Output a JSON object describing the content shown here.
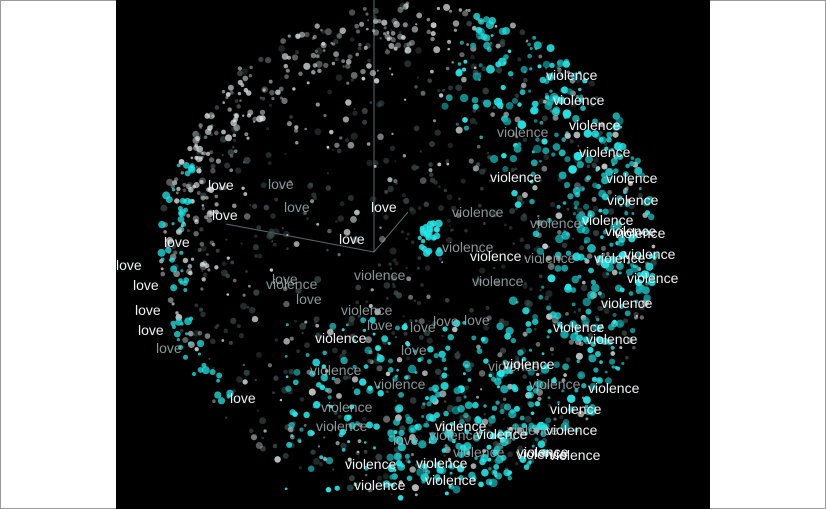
{
  "projector": {
    "background": "#000000",
    "colors": {
      "highlight": "#22e6e6",
      "highlight_dim": "#13a7a9",
      "neutral_point": "#dfe7e7",
      "dim_point": "#3f5252",
      "label_bright": "#eef3f3",
      "label_dim": "#9fb1b1",
      "axis": "#7f9999"
    },
    "labels": [
      {
        "text": "violence",
        "tone": "bright"
      },
      {
        "text": "violence",
        "tone": "bright"
      },
      {
        "text": "violence",
        "tone": "bright"
      },
      {
        "text": "violence",
        "tone": "dim"
      },
      {
        "text": "violence",
        "tone": "bright"
      },
      {
        "text": "violence",
        "tone": "bright"
      },
      {
        "text": "violence",
        "tone": "bright"
      },
      {
        "text": "violence",
        "tone": "bright"
      },
      {
        "text": "violence",
        "tone": "dim"
      },
      {
        "text": "violence",
        "tone": "dim"
      },
      {
        "text": "violence",
        "tone": "bright"
      },
      {
        "text": "violence",
        "tone": "dim"
      },
      {
        "text": "violence",
        "tone": "bright"
      },
      {
        "text": "violence",
        "tone": "bright"
      },
      {
        "text": "violence",
        "tone": "dim"
      },
      {
        "text": "violence",
        "tone": "dim"
      },
      {
        "text": "violence",
        "tone": "bright"
      },
      {
        "text": "violence",
        "tone": "dim"
      },
      {
        "text": "violence",
        "tone": "bright"
      },
      {
        "text": "violence",
        "tone": "bright"
      },
      {
        "text": "violence",
        "tone": "dim"
      },
      {
        "text": "violence",
        "tone": "dim"
      },
      {
        "text": "violence",
        "tone": "bright"
      },
      {
        "text": "violence",
        "tone": "dim"
      },
      {
        "text": "violence",
        "tone": "dim"
      },
      {
        "text": "violence",
        "tone": "bright"
      },
      {
        "text": "violence",
        "tone": "dim"
      },
      {
        "text": "violence",
        "tone": "dim"
      },
      {
        "text": "violence",
        "tone": "bright"
      },
      {
        "text": "violence",
        "tone": "dim"
      },
      {
        "text": "violence",
        "tone": "bright"
      },
      {
        "text": "violence",
        "tone": "bright"
      },
      {
        "text": "violence",
        "tone": "dim"
      },
      {
        "text": "violence",
        "tone": "dim"
      },
      {
        "text": "violence",
        "tone": "bright"
      },
      {
        "text": "violence",
        "tone": "dim"
      },
      {
        "text": "violence",
        "tone": "bright"
      },
      {
        "text": "violence",
        "tone": "bright"
      },
      {
        "text": "violence",
        "tone": "bright"
      },
      {
        "text": "violence",
        "tone": "bright"
      },
      {
        "text": "violence",
        "tone": "bright"
      },
      {
        "text": "violence",
        "tone": "bright"
      },
      {
        "text": "violence",
        "tone": "bright"
      },
      {
        "text": "violence",
        "tone": "dim"
      },
      {
        "text": "violence",
        "tone": "bright"
      },
      {
        "text": "violence",
        "tone": "bright"
      },
      {
        "text": "violence",
        "tone": "bright"
      },
      {
        "text": "violence",
        "tone": "bright"
      },
      {
        "text": "violence",
        "tone": "bright"
      },
      {
        "text": "love",
        "tone": "bright"
      },
      {
        "text": "love",
        "tone": "dim"
      },
      {
        "text": "love",
        "tone": "dim"
      },
      {
        "text": "love",
        "tone": "bright"
      },
      {
        "text": "love",
        "tone": "bright"
      },
      {
        "text": "love",
        "tone": "bright"
      },
      {
        "text": "love",
        "tone": "bright"
      },
      {
        "text": "love",
        "tone": "bright"
      },
      {
        "text": "love",
        "tone": "bright"
      },
      {
        "text": "love",
        "tone": "dim"
      },
      {
        "text": "love",
        "tone": "dim"
      },
      {
        "text": "love",
        "tone": "dim"
      },
      {
        "text": "love",
        "tone": "dim"
      },
      {
        "text": "love",
        "tone": "dim"
      },
      {
        "text": "love",
        "tone": "dim"
      },
      {
        "text": "love",
        "tone": "dim"
      },
      {
        "text": "love",
        "tone": "bright"
      },
      {
        "text": "love",
        "tone": "dim"
      },
      {
        "text": "love",
        "tone": "bright"
      },
      {
        "text": "love",
        "tone": "dim"
      },
      {
        "text": "love",
        "tone": "bright"
      }
    ]
  }
}
